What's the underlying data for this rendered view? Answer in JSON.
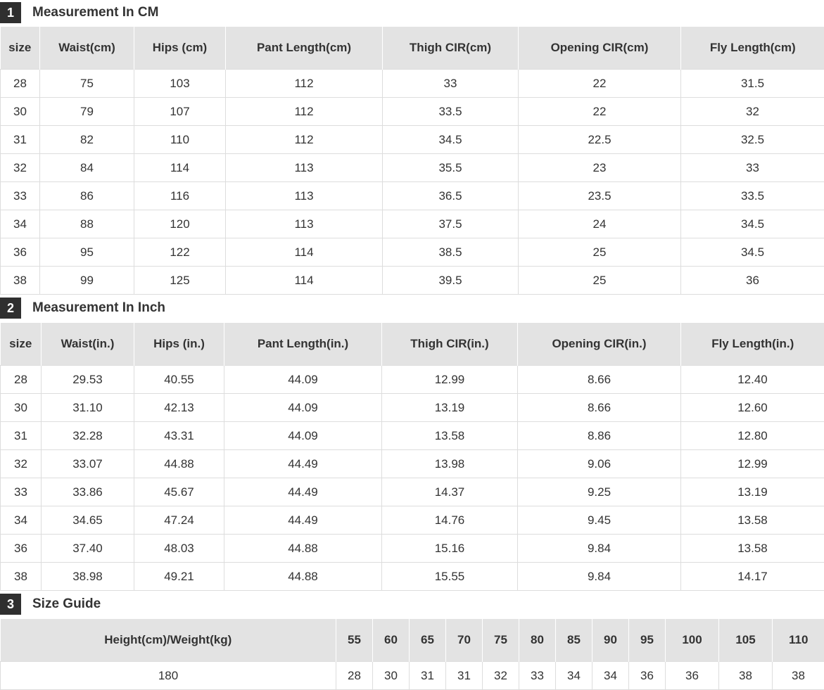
{
  "sections": [
    {
      "number": "1",
      "title": "Measurement In CM",
      "headers": [
        "size",
        "Waist(cm)",
        "Hips (cm)",
        "Pant Length(cm)",
        "Thigh CIR(cm)",
        "Opening CIR(cm)",
        "Fly Length(cm)"
      ],
      "rows": [
        [
          "28",
          "75",
          "103",
          "112",
          "33",
          "22",
          "31.5"
        ],
        [
          "30",
          "79",
          "107",
          "112",
          "33.5",
          "22",
          "32"
        ],
        [
          "31",
          "82",
          "110",
          "112",
          "34.5",
          "22.5",
          "32.5"
        ],
        [
          "32",
          "84",
          "114",
          "113",
          "35.5",
          "23",
          "33"
        ],
        [
          "33",
          "86",
          "116",
          "113",
          "36.5",
          "23.5",
          "33.5"
        ],
        [
          "34",
          "88",
          "120",
          "113",
          "37.5",
          "24",
          "34.5"
        ],
        [
          "36",
          "95",
          "122",
          "114",
          "38.5",
          "25",
          "34.5"
        ],
        [
          "38",
          "99",
          "125",
          "114",
          "39.5",
          "25",
          "36"
        ]
      ]
    },
    {
      "number": "2",
      "title": "Measurement In Inch",
      "headers": [
        "size",
        "Waist(in.)",
        "Hips (in.)",
        "Pant Length(in.)",
        "Thigh CIR(in.)",
        "Opening CIR(in.)",
        "Fly Length(in.)"
      ],
      "rows": [
        [
          "28",
          "29.53",
          "40.55",
          "44.09",
          "12.99",
          "8.66",
          "12.40"
        ],
        [
          "30",
          "31.10",
          "42.13",
          "44.09",
          "13.19",
          "8.66",
          "12.60"
        ],
        [
          "31",
          "32.28",
          "43.31",
          "44.09",
          "13.58",
          "8.86",
          "12.80"
        ],
        [
          "32",
          "33.07",
          "44.88",
          "44.49",
          "13.98",
          "9.06",
          "12.99"
        ],
        [
          "33",
          "33.86",
          "45.67",
          "44.49",
          "14.37",
          "9.25",
          "13.19"
        ],
        [
          "34",
          "34.65",
          "47.24",
          "44.49",
          "14.76",
          "9.45",
          "13.58"
        ],
        [
          "36",
          "37.40",
          "48.03",
          "44.88",
          "15.16",
          "9.84",
          "13.58"
        ],
        [
          "38",
          "38.98",
          "49.21",
          "44.88",
          "15.55",
          "9.84",
          "14.17"
        ]
      ]
    },
    {
      "number": "3",
      "title": "Size Guide",
      "headers": [
        "Height(cm)/Weight(kg)",
        "55",
        "60",
        "65",
        "70",
        "75",
        "80",
        "85",
        "90",
        "95",
        "100",
        "105",
        "110"
      ],
      "rows": [
        [
          "180",
          "28",
          "30",
          "31",
          "31",
          "32",
          "33",
          "34",
          "34",
          "36",
          "36",
          "38",
          "38"
        ]
      ]
    }
  ]
}
